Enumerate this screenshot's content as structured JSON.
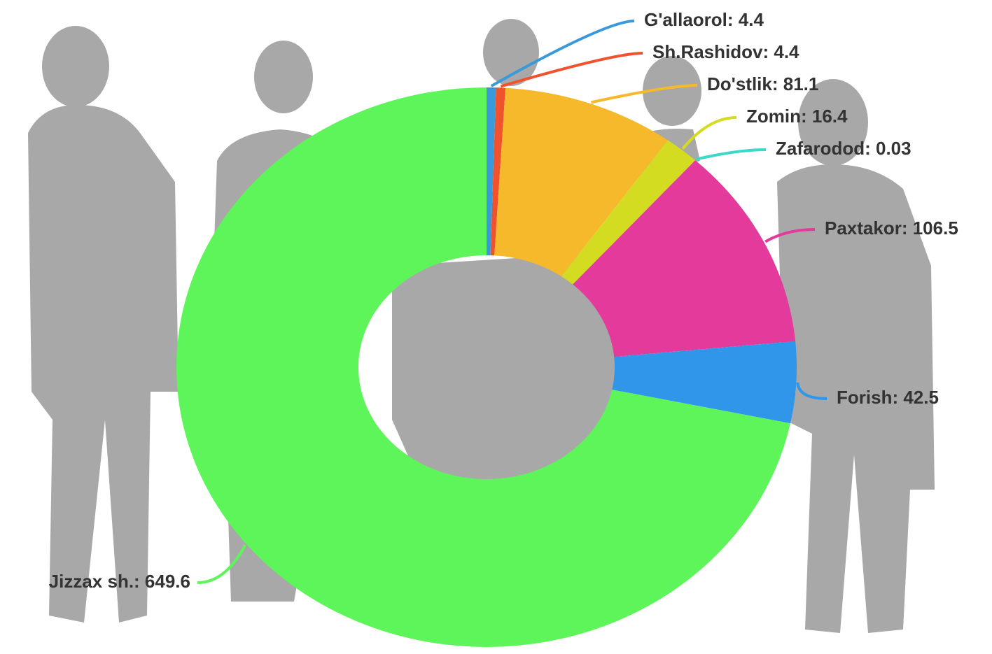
{
  "chart_data": {
    "type": "pie",
    "donut": true,
    "values": [
      4.4,
      4.4,
      81.1,
      16.4,
      0.03,
      106.5,
      42.5,
      649.6
    ],
    "value_labels": [
      "G'allaorol: 4.4",
      "Sh.Rashidov: 4.4",
      "Do'stlik: 81.1",
      "Zomin: 16.4",
      "Zafarodod: 0.03",
      "Paxtakor: 106.5",
      "Forish: 42.5",
      "Jizzax sh.: 649.6"
    ],
    "colors": [
      "#3a9ad9",
      "#f0522e",
      "#f6b92c",
      "#d4dc22",
      "#3dd9c8",
      "#e33a9b",
      "#3096ea",
      "#5ef55a"
    ]
  }
}
